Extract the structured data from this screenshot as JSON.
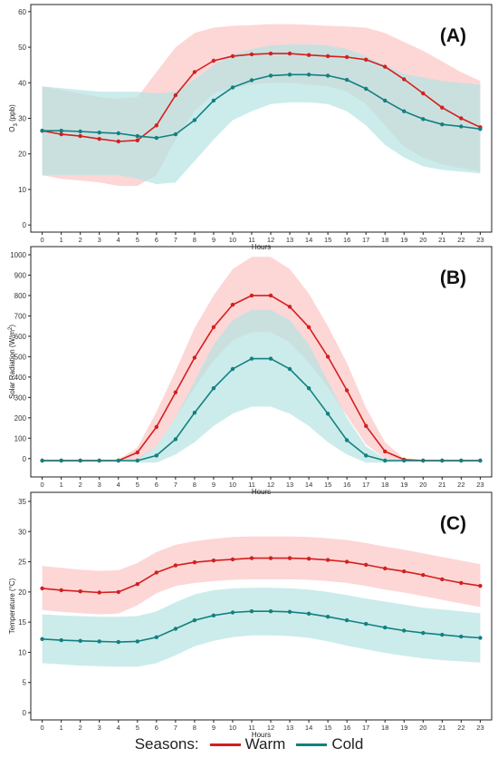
{
  "legend": {
    "title": "Seasons:",
    "warm_label": "Warm",
    "cold_label": "Cold",
    "warm_color": "#d41f1f",
    "cold_color": "#138080",
    "warm_band_color": "#fbc6c4",
    "cold_band_color": "#b5e4e3"
  },
  "chart_data": [
    {
      "type": "line",
      "panel_label": "(A)",
      "xlabel": "Hours",
      "ylabel": "O3 (ppb)",
      "ylabel_parts": {
        "base": "O",
        "sub": "3",
        "rest": " (ppb)"
      },
      "ylim": [
        -2,
        62
      ],
      "yticks": [
        0,
        10,
        20,
        30,
        40,
        50,
        60
      ],
      "grid": false,
      "x": [
        0,
        1,
        2,
        3,
        4,
        5,
        6,
        7,
        8,
        9,
        10,
        11,
        12,
        13,
        14,
        15,
        16,
        17,
        18,
        19,
        20,
        21,
        22,
        23
      ],
      "series": [
        {
          "name": "Warm",
          "values": [
            26.5,
            25.5,
            25,
            24.2,
            23.5,
            23.8,
            28,
            36.5,
            43,
            46.2,
            47.5,
            48,
            48.2,
            48.2,
            47.8,
            47.5,
            47.2,
            46.5,
            44.5,
            41,
            37,
            33,
            30,
            27.5
          ],
          "band_upper": [
            39,
            38,
            37,
            36,
            35.5,
            36,
            43,
            50,
            54,
            55.5,
            56,
            56.2,
            56.5,
            56.5,
            56.3,
            56,
            55.8,
            55.5,
            54,
            51.5,
            49,
            46,
            43,
            40.5
          ],
          "band_lower": [
            14,
            13,
            12.5,
            12,
            11,
            11,
            14,
            24,
            32,
            37,
            38.5,
            39.5,
            40,
            40,
            39.5,
            39,
            37.5,
            34,
            28,
            22,
            19,
            17,
            16,
            15
          ]
        },
        {
          "name": "Cold",
          "values": [
            26.5,
            26.5,
            26.3,
            26,
            25.8,
            25,
            24.5,
            25.5,
            29.5,
            35,
            38.7,
            40.7,
            42,
            42.3,
            42.3,
            42,
            40.8,
            38.3,
            35,
            32,
            29.8,
            28.3,
            27.7,
            27
          ],
          "band_upper": [
            39,
            38.5,
            38,
            37.5,
            37.5,
            37.5,
            37,
            37.5,
            41,
            45,
            48,
            49.5,
            50.5,
            50.8,
            50.8,
            50.5,
            49.5,
            47.5,
            45,
            42.5,
            41.5,
            40.5,
            40,
            39.5
          ],
          "band_lower": [
            14,
            14,
            14,
            14,
            14,
            13,
            11.5,
            12,
            18,
            24,
            29.5,
            32,
            34,
            34.5,
            34.5,
            34,
            32,
            28,
            22.5,
            19,
            16.5,
            15.5,
            15,
            14.5
          ]
        }
      ]
    },
    {
      "type": "line",
      "panel_label": "(B)",
      "xlabel": "Hours",
      "ylabel": "Solar Radiation (W/m2)",
      "ylabel_parts": {
        "base": "Solar Radiation (W/m",
        "sup": "2",
        "rest": ")"
      },
      "ylim": [
        -90,
        1040
      ],
      "yticks": [
        0,
        100,
        200,
        300,
        400,
        500,
        600,
        700,
        800,
        900,
        1000
      ],
      "grid": false,
      "x": [
        0,
        1,
        2,
        3,
        4,
        5,
        6,
        7,
        8,
        9,
        10,
        11,
        12,
        13,
        14,
        15,
        16,
        17,
        18,
        19,
        20,
        21,
        22,
        23
      ],
      "series": [
        {
          "name": "Warm",
          "values": [
            -10,
            -10,
            -10,
            -10,
            -10,
            30,
            155,
            325,
            495,
            645,
            755,
            800,
            800,
            745,
            645,
            500,
            335,
            160,
            35,
            -5,
            -10,
            -10,
            -10,
            -10
          ],
          "band_upper": [
            -5,
            -5,
            -5,
            -5,
            -5,
            55,
            230,
            430,
            640,
            800,
            930,
            990,
            990,
            930,
            810,
            650,
            470,
            250,
            80,
            0,
            -5,
            -5,
            -5,
            -5
          ],
          "band_lower": [
            -15,
            -15,
            -15,
            -15,
            -15,
            -10,
            60,
            200,
            350,
            480,
            580,
            620,
            620,
            570,
            470,
            350,
            210,
            70,
            0,
            -15,
            -15,
            -15,
            -15,
            -15
          ]
        },
        {
          "name": "Cold",
          "values": [
            -10,
            -10,
            -10,
            -10,
            -10,
            -10,
            15,
            95,
            225,
            345,
            440,
            490,
            490,
            440,
            345,
            220,
            90,
            15,
            -10,
            -10,
            -10,
            -10,
            -10,
            -10
          ],
          "band_upper": [
            -5,
            -5,
            -5,
            -5,
            -5,
            0,
            60,
            200,
            380,
            560,
            680,
            730,
            730,
            680,
            560,
            380,
            200,
            60,
            0,
            -5,
            -5,
            -5,
            -5,
            -5
          ],
          "band_lower": [
            -15,
            -15,
            -15,
            -15,
            -15,
            -20,
            -20,
            20,
            80,
            160,
            220,
            255,
            255,
            220,
            160,
            80,
            20,
            -20,
            -20,
            -15,
            -15,
            -15,
            -15,
            -15
          ]
        }
      ]
    },
    {
      "type": "line",
      "panel_label": "(C)",
      "xlabel": "Hours",
      "ylabel": "Temperature (°C)",
      "ylabel_parts": {
        "base": "Temperature (°C)"
      },
      "ylim": [
        -1.2,
        36.5
      ],
      "yticks": [
        0,
        5,
        10,
        15,
        20,
        25,
        30,
        35
      ],
      "grid": false,
      "x": [
        0,
        1,
        2,
        3,
        4,
        5,
        6,
        7,
        8,
        9,
        10,
        11,
        12,
        13,
        14,
        15,
        16,
        17,
        18,
        19,
        20,
        21,
        22,
        23
      ],
      "series": [
        {
          "name": "Warm",
          "values": [
            20.6,
            20.3,
            20.1,
            19.9,
            20,
            21.3,
            23.2,
            24.4,
            24.9,
            25.2,
            25.4,
            25.6,
            25.6,
            25.6,
            25.5,
            25.3,
            25,
            24.5,
            23.9,
            23.4,
            22.8,
            22.1,
            21.5,
            21
          ],
          "band_upper": [
            24.3,
            24,
            23.7,
            23.5,
            23.6,
            24.8,
            26.6,
            27.8,
            28.4,
            28.8,
            29.1,
            29.2,
            29.2,
            29.2,
            29.1,
            28.9,
            28.6,
            28.1,
            27.5,
            27,
            26.4,
            25.8,
            25.2,
            24.6
          ],
          "band_lower": [
            17,
            16.7,
            16.5,
            16.3,
            16.4,
            17.8,
            19.8,
            21,
            21.5,
            21.8,
            22,
            22.1,
            22.1,
            22.1,
            22,
            21.8,
            21.5,
            21,
            20.4,
            19.9,
            19.3,
            18.7,
            18.1,
            17.5
          ]
        },
        {
          "name": "Cold",
          "values": [
            12.2,
            12,
            11.9,
            11.8,
            11.7,
            11.8,
            12.5,
            13.9,
            15.3,
            16.1,
            16.6,
            16.8,
            16.8,
            16.7,
            16.4,
            15.9,
            15.3,
            14.7,
            14.1,
            13.6,
            13.2,
            12.9,
            12.6,
            12.4
          ],
          "band_upper": [
            16.3,
            16.1,
            16,
            15.9,
            15.9,
            16,
            16.8,
            18.3,
            19.6,
            20.3,
            20.6,
            20.7,
            20.7,
            20.6,
            20.4,
            20,
            19.5,
            18.9,
            18.4,
            17.9,
            17.4,
            17.1,
            16.8,
            16.5
          ],
          "band_lower": [
            8.2,
            8,
            7.8,
            7.7,
            7.6,
            7.6,
            8.2,
            9.5,
            11,
            11.9,
            12.5,
            12.8,
            12.8,
            12.7,
            12.4,
            11.8,
            11.1,
            10.5,
            9.9,
            9.4,
            9,
            8.7,
            8.5,
            8.3
          ]
        }
      ]
    }
  ]
}
